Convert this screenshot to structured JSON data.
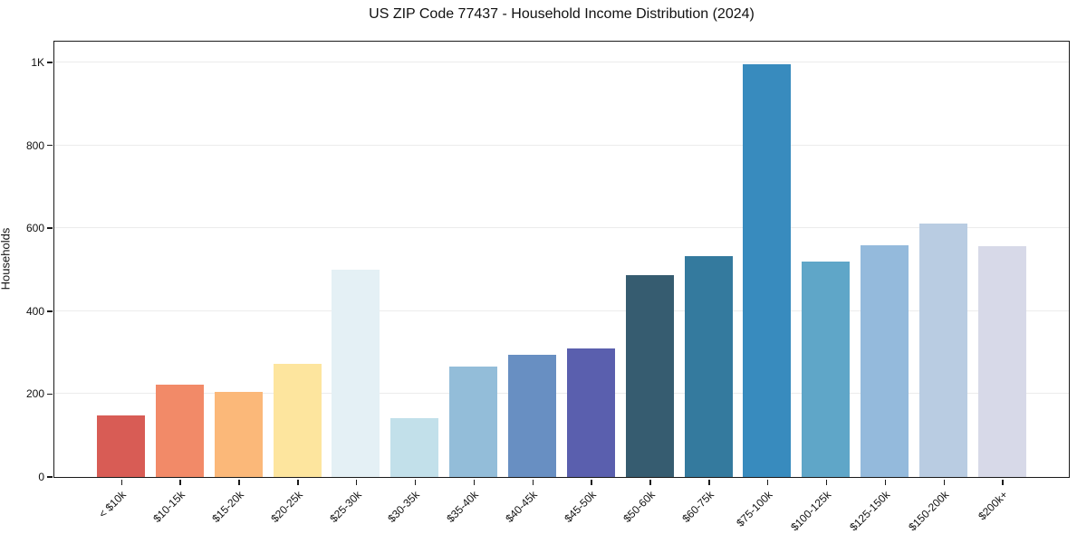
{
  "chart_data": {
    "type": "bar",
    "title": "US ZIP Code 77437 - Household Income Distribution (2024)",
    "xlabel": "",
    "ylabel": "Households",
    "ylim": [
      0,
      1048
    ],
    "grid": true,
    "legend": false,
    "background_color": "#ffffff",
    "gridline_color": "#ececec",
    "spine_color": "#1a1a1a",
    "categories": [
      "< $10k",
      "$10-15k",
      "$15-20k",
      "$20-25k",
      "$25-30k",
      "$30-35k",
      "$35-40k",
      "$40-45k",
      "$45-50k",
      "$50-60k",
      "$60-75k",
      "$75-100k",
      "$100-125k",
      "$125-150k",
      "$150-200k",
      "$200k+"
    ],
    "values": [
      148,
      222,
      205,
      272,
      500,
      142,
      267,
      294,
      311,
      487,
      533,
      995,
      520,
      558,
      612,
      556
    ],
    "bar_colors": [
      "#d85c55",
      "#f28a68",
      "#fbb879",
      "#fde59e",
      "#e4f0f5",
      "#c2e0ea",
      "#93bdd9",
      "#688fc2",
      "#5a5fae",
      "#365c70",
      "#347a9e",
      "#388bbe",
      "#5fa6c8",
      "#94badc",
      "#b9cce2",
      "#d7d9e8"
    ],
    "ytick_values": [
      0,
      200,
      400,
      600,
      800,
      1000
    ],
    "ytick_labels": [
      "0",
      "200",
      "400",
      "600",
      "800",
      "1K"
    ]
  }
}
